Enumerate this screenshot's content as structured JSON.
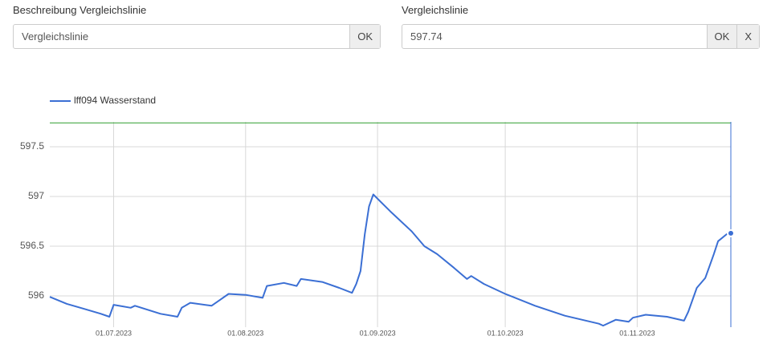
{
  "form": {
    "description_label": "Beschreibung Vergleichslinie",
    "description_value": "Vergleichslinie",
    "description_button": "OK",
    "line_label": "Vergleichslinie",
    "line_button": "OK",
    "line_clear": "X"
  },
  "chart_data": {
    "type": "line",
    "reference_line": 597.74,
    "reference_color": "#2e9e2e",
    "x": [
      "16.06.2023",
      "20.06.2023",
      "24.06.2023",
      "28.06.2023",
      "30.06.2023",
      "01.07.2023",
      "05.07.2023",
      "06.07.2023",
      "12.07.2023",
      "16.07.2023",
      "17.07.2023",
      "19.07.2023",
      "24.07.2023",
      "26.07.2023",
      "28.07.2023",
      "01.08.2023",
      "05.08.2023",
      "06.08.2023",
      "10.08.2023",
      "13.08.2023",
      "14.08.2023",
      "19.08.2023",
      "23.08.2023",
      "26.08.2023",
      "27.08.2023",
      "28.08.2023",
      "29.08.2023",
      "30.08.2023",
      "31.08.2023",
      "04.09.2023",
      "09.09.2023",
      "12.09.2023",
      "15.09.2023",
      "19.09.2023",
      "22.09.2023",
      "23.09.2023",
      "26.09.2023",
      "01.10.2023",
      "08.10.2023",
      "15.10.2023",
      "23.10.2023",
      "24.10.2023",
      "27.10.2023",
      "30.10.2023",
      "31.10.2023",
      "03.11.2023",
      "08.11.2023",
      "12.11.2023",
      "13.11.2023",
      "15.11.2023",
      "17.11.2023",
      "18.11.2023",
      "19.11.2023",
      "20.11.2023",
      "22.11.2023",
      "23.11.2023"
    ],
    "series": [
      {
        "name": "lff094 Wasserstand",
        "color": "#3b6fd4",
        "values": [
          595.99,
          595.92,
          595.87,
          595.82,
          595.79,
          595.91,
          595.88,
          595.9,
          595.82,
          595.79,
          595.88,
          595.93,
          595.9,
          595.96,
          596.02,
          596.01,
          595.98,
          596.1,
          596.13,
          596.1,
          596.17,
          596.14,
          596.08,
          596.03,
          596.12,
          596.25,
          596.62,
          596.9,
          597.02,
          596.85,
          596.65,
          596.5,
          596.42,
          596.28,
          596.17,
          596.2,
          596.12,
          596.02,
          595.9,
          595.8,
          595.72,
          595.7,
          595.76,
          595.74,
          595.78,
          595.81,
          595.79,
          595.75,
          595.84,
          596.08,
          596.18,
          596.3,
          596.42,
          596.55,
          596.62,
          596.63
        ]
      }
    ],
    "xlim": [
      "16.06.2023",
      "23.11.2023"
    ],
    "xticks": [
      "01.07.2023",
      "01.08.2023",
      "01.09.2023",
      "01.10.2023",
      "01.11.2023"
    ],
    "ylim": [
      595.685,
      597.75
    ],
    "yticks": [
      596.0,
      596.5,
      597.0,
      597.5
    ],
    "grid": true,
    "legend": "top-left"
  }
}
